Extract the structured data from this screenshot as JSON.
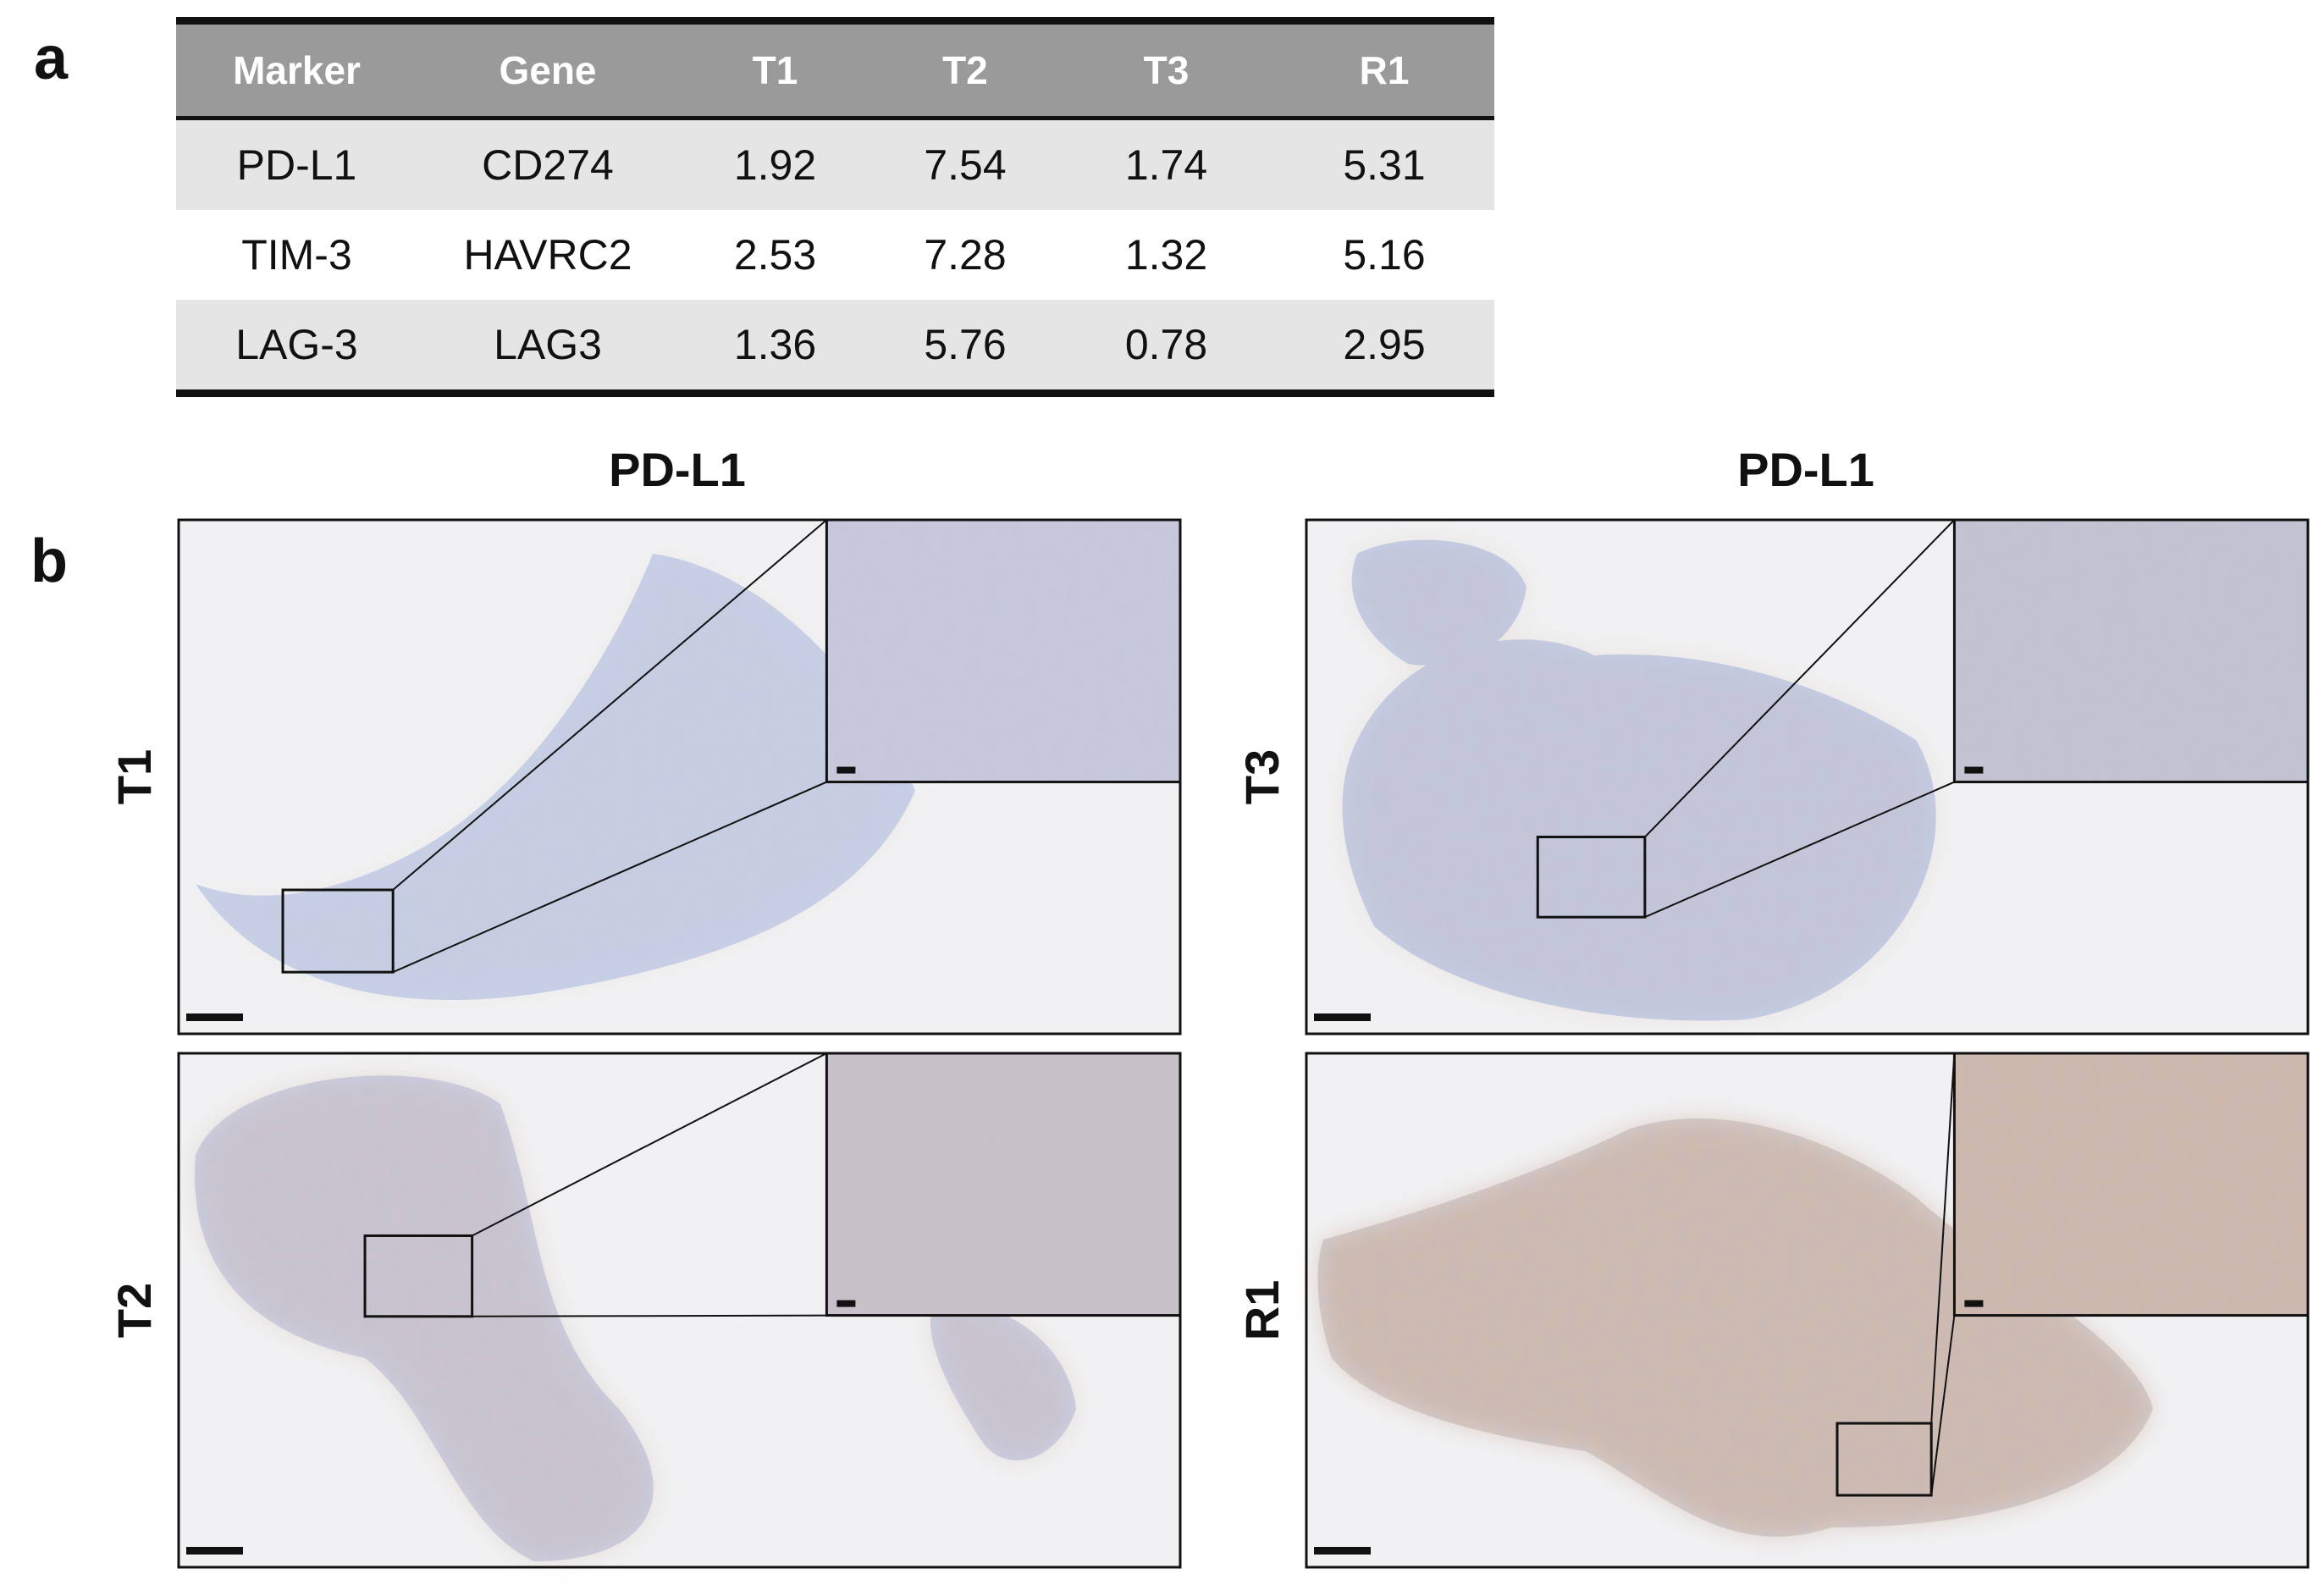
{
  "panel_labels": [
    "a",
    "b"
  ],
  "table": {
    "header": [
      "Marker",
      "Gene",
      "T1",
      "T2",
      "T3",
      "R1"
    ],
    "rows": [
      [
        "PD-L1",
        "CD274",
        "1.92",
        "7.54",
        "1.74",
        "5.31"
      ],
      [
        "TIM-3",
        "HAVRC2",
        "2.53",
        "7.28",
        "1.32",
        "5.16"
      ],
      [
        "LAG-3",
        "LAG3",
        "1.36",
        "5.76",
        "0.78",
        "2.95"
      ]
    ]
  },
  "figure": {
    "column_titles": [
      "PD-L1",
      "PD-L1"
    ],
    "row_labels": [
      "T1",
      "T2",
      "T3",
      "R1"
    ]
  }
}
